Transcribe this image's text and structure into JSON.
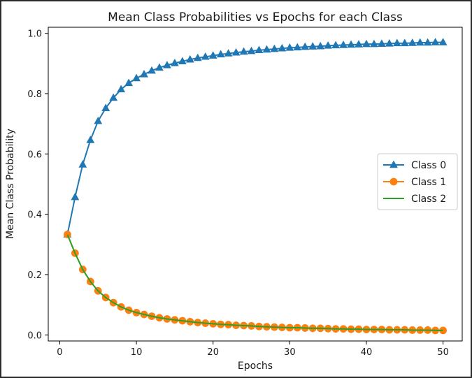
{
  "chart_data": {
    "type": "line",
    "title": "Mean Class Probabilities vs Epochs for each Class",
    "xlabel": "Epochs",
    "ylabel": "Mean Class Probability",
    "xlim": [
      -1.5,
      52.5
    ],
    "ylim": [
      -0.02,
      1.02
    ],
    "xticks": [
      0,
      10,
      20,
      30,
      40,
      50
    ],
    "yticks": [
      0.0,
      0.2,
      0.4,
      0.6,
      0.8,
      1.0
    ],
    "xtick_labels": [
      "0",
      "10",
      "20",
      "30",
      "40",
      "50"
    ],
    "ytick_labels": [
      "0.0",
      "0.2",
      "0.4",
      "0.6",
      "0.8",
      "1.0"
    ],
    "grid": false,
    "legend_position": "center-right",
    "x": [
      1,
      2,
      3,
      4,
      5,
      6,
      7,
      8,
      9,
      10,
      11,
      12,
      13,
      14,
      15,
      16,
      17,
      18,
      19,
      20,
      21,
      22,
      23,
      24,
      25,
      26,
      27,
      28,
      29,
      30,
      31,
      32,
      33,
      34,
      35,
      36,
      37,
      38,
      39,
      40,
      41,
      42,
      43,
      44,
      45,
      46,
      47,
      48,
      49,
      50
    ],
    "series": [
      {
        "name": "Class 0",
        "color": "#1f77b4",
        "marker": "triangle",
        "values": [
          0.333,
          0.457,
          0.565,
          0.646,
          0.709,
          0.752,
          0.786,
          0.814,
          0.835,
          0.851,
          0.864,
          0.876,
          0.886,
          0.894,
          0.901,
          0.907,
          0.913,
          0.918,
          0.922,
          0.926,
          0.93,
          0.933,
          0.936,
          0.939,
          0.941,
          0.944,
          0.946,
          0.948,
          0.95,
          0.952,
          0.953,
          0.955,
          0.956,
          0.957,
          0.959,
          0.96,
          0.961,
          0.962,
          0.963,
          0.964,
          0.964,
          0.965,
          0.966,
          0.967,
          0.967,
          0.968,
          0.969,
          0.969,
          0.97,
          0.97
        ]
      },
      {
        "name": "Class 1",
        "color": "#ff7f0e",
        "marker": "circle",
        "values": [
          0.333,
          0.271,
          0.217,
          0.177,
          0.146,
          0.124,
          0.107,
          0.093,
          0.082,
          0.074,
          0.068,
          0.062,
          0.057,
          0.053,
          0.05,
          0.047,
          0.044,
          0.041,
          0.039,
          0.037,
          0.035,
          0.034,
          0.032,
          0.031,
          0.03,
          0.028,
          0.027,
          0.026,
          0.025,
          0.024,
          0.024,
          0.023,
          0.022,
          0.022,
          0.021,
          0.02,
          0.02,
          0.019,
          0.019,
          0.018,
          0.018,
          0.018,
          0.017,
          0.017,
          0.017,
          0.016,
          0.016,
          0.016,
          0.015,
          0.015
        ]
      },
      {
        "name": "Class 2",
        "color": "#2ca02c",
        "marker": "none",
        "values": [
          0.333,
          0.271,
          0.217,
          0.177,
          0.146,
          0.124,
          0.107,
          0.093,
          0.082,
          0.074,
          0.068,
          0.062,
          0.057,
          0.053,
          0.05,
          0.047,
          0.044,
          0.041,
          0.039,
          0.037,
          0.035,
          0.034,
          0.032,
          0.031,
          0.03,
          0.028,
          0.027,
          0.026,
          0.025,
          0.024,
          0.024,
          0.023,
          0.022,
          0.022,
          0.021,
          0.02,
          0.02,
          0.019,
          0.019,
          0.018,
          0.018,
          0.018,
          0.017,
          0.017,
          0.017,
          0.016,
          0.016,
          0.016,
          0.015,
          0.015
        ]
      }
    ]
  }
}
